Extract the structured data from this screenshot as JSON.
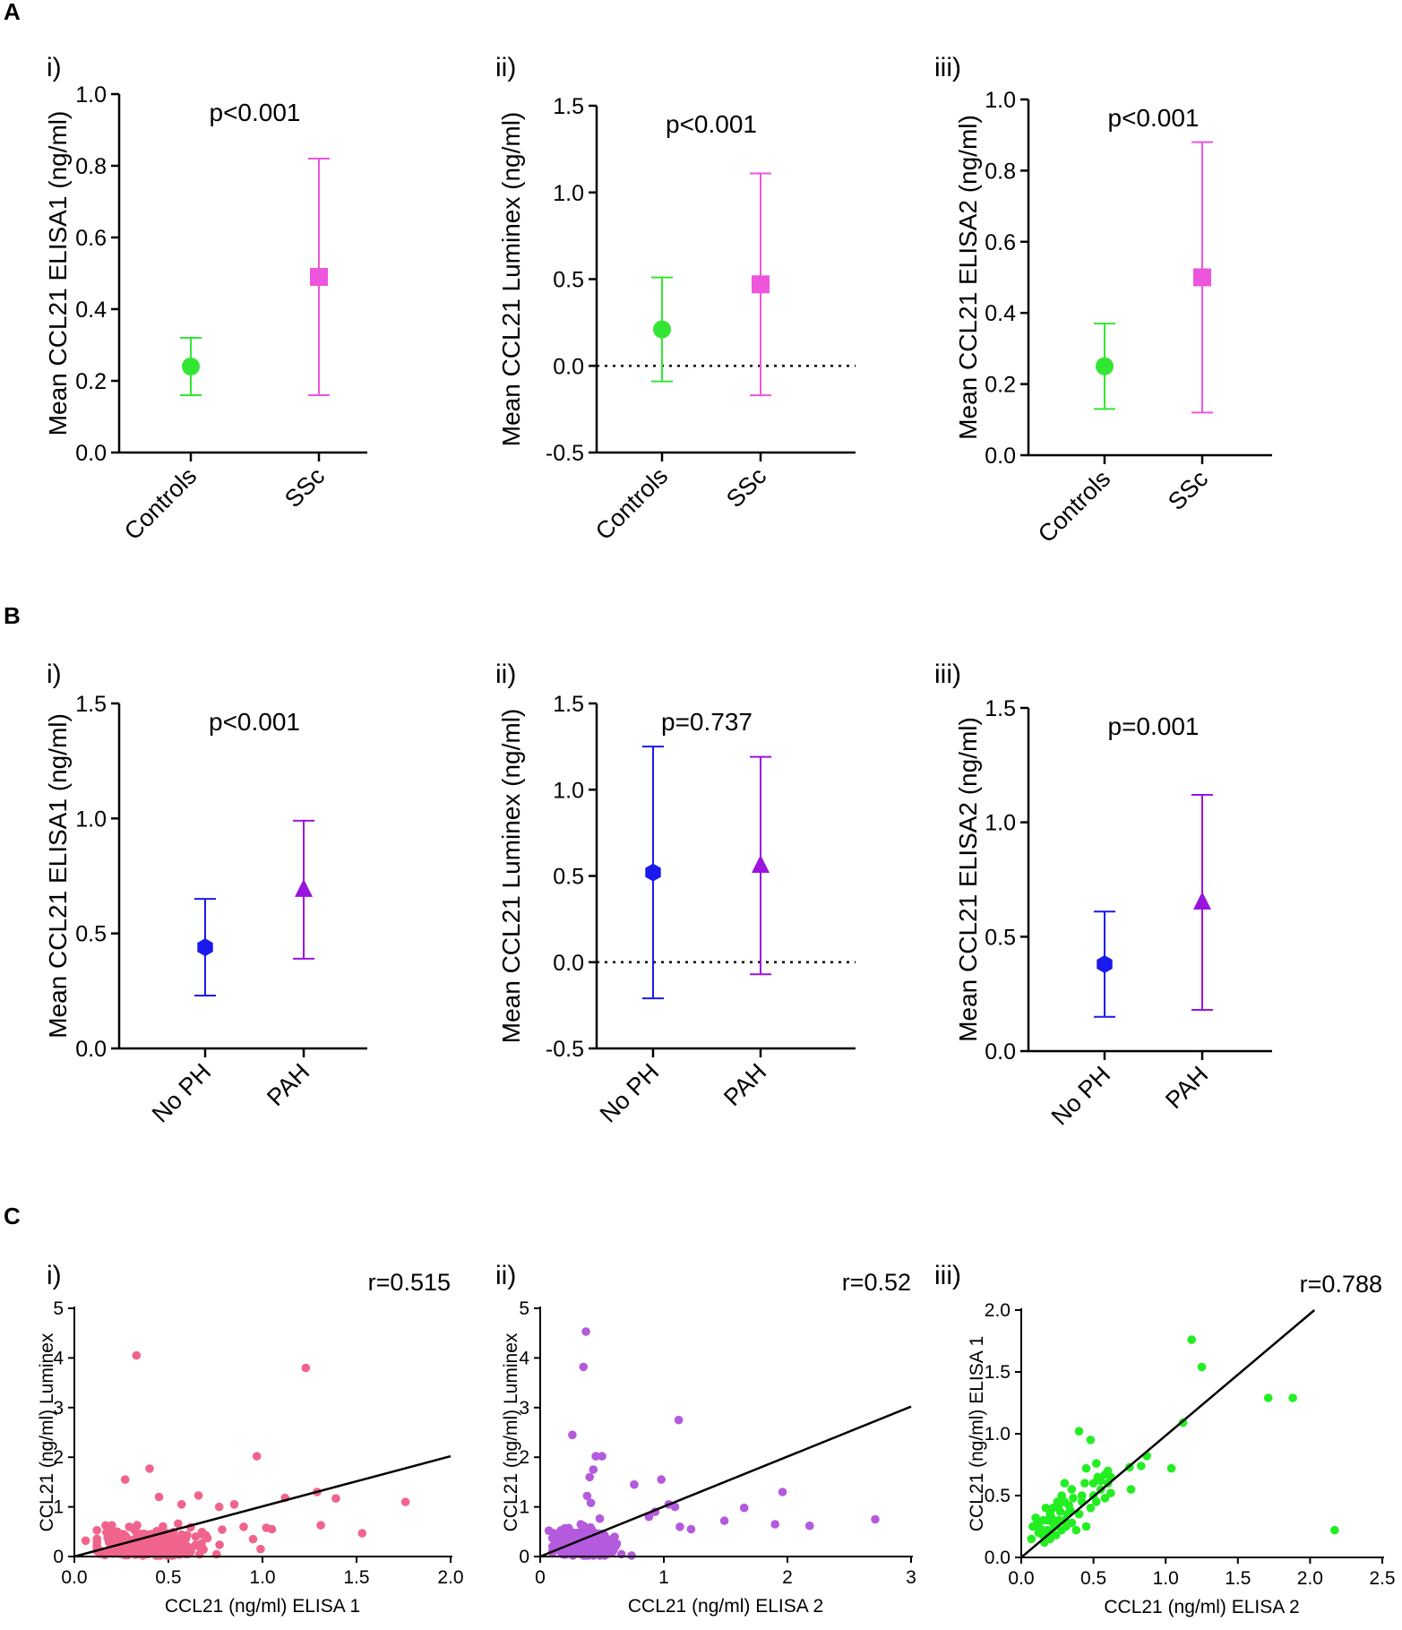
{
  "row_labels": [
    "A",
    "B",
    "C"
  ],
  "chart_data": [
    {
      "id": "A-i",
      "row": "A",
      "panel_label": "i)",
      "type": "errorbar",
      "ylabel": "Mean CCL21 ELISA1 (ng/ml)",
      "ylim": [
        0,
        1.0
      ],
      "yticks": [
        0,
        0.2,
        0.4,
        0.6,
        0.8,
        1.0
      ],
      "ytick_labels": [
        "0.0",
        "0.2",
        "0.4",
        "0.6",
        "0.8",
        "1.0"
      ],
      "zero_dotted": false,
      "p_text": "p<0.001",
      "groups": [
        {
          "label": "Controls",
          "mean": 0.24,
          "low": 0.16,
          "high": 0.32,
          "color": "#33e633",
          "marker": "circle"
        },
        {
          "label": "SSc",
          "mean": 0.49,
          "low": 0.16,
          "high": 0.82,
          "color": "#ee55dd",
          "marker": "square"
        }
      ]
    },
    {
      "id": "A-ii",
      "row": "A",
      "panel_label": "ii)",
      "type": "errorbar",
      "ylabel": "Mean CCL21 Luminex (ng/ml)",
      "ylim": [
        -0.5,
        1.5
      ],
      "yticks": [
        -0.5,
        0,
        0.5,
        1.0,
        1.5
      ],
      "ytick_labels": [
        "-0.5",
        "0.0",
        "0.5",
        "1.0",
        "1.5"
      ],
      "zero_dotted": true,
      "p_text": "p<0.001",
      "groups": [
        {
          "label": "Controls",
          "mean": 0.21,
          "low": -0.09,
          "high": 0.51,
          "color": "#33e633",
          "marker": "circle"
        },
        {
          "label": "SSc",
          "mean": 0.47,
          "low": -0.17,
          "high": 1.11,
          "color": "#ee55dd",
          "marker": "square"
        }
      ]
    },
    {
      "id": "A-iii",
      "row": "A",
      "panel_label": "iii)",
      "type": "errorbar",
      "ylabel": "Mean CCL21 ELISA2 (ng/ml)",
      "ylim": [
        0,
        1.0
      ],
      "yticks": [
        0,
        0.2,
        0.4,
        0.6,
        0.8,
        1.0
      ],
      "ytick_labels": [
        "0.0",
        "0.2",
        "0.4",
        "0.6",
        "0.8",
        "1.0"
      ],
      "zero_dotted": false,
      "p_text": "p<0.001",
      "groups": [
        {
          "label": "Controls",
          "mean": 0.25,
          "low": 0.13,
          "high": 0.37,
          "color": "#33e633",
          "marker": "circle"
        },
        {
          "label": "SSc",
          "mean": 0.5,
          "low": 0.12,
          "high": 0.88,
          "color": "#ee55dd",
          "marker": "square"
        }
      ]
    },
    {
      "id": "B-i",
      "row": "B",
      "panel_label": "i)",
      "type": "errorbar",
      "ylabel": "Mean CCL21 ELISA1 (ng/ml)",
      "ylim": [
        0,
        1.5
      ],
      "yticks": [
        0,
        0.5,
        1.0,
        1.5
      ],
      "ytick_labels": [
        "0.0",
        "0.5",
        "1.0",
        "1.5"
      ],
      "zero_dotted": false,
      "p_text": "p<0.001",
      "groups": [
        {
          "label": "No PH",
          "mean": 0.44,
          "low": 0.23,
          "high": 0.65,
          "color": "#1a1aee",
          "marker": "hexagon"
        },
        {
          "label": "PAH",
          "mean": 0.69,
          "low": 0.39,
          "high": 0.99,
          "color": "#9a14dd",
          "marker": "triangle"
        }
      ]
    },
    {
      "id": "B-ii",
      "row": "B",
      "panel_label": "ii)",
      "type": "errorbar",
      "ylabel": "Mean CCL21 Luminex (ng/ml)",
      "ylim": [
        -0.5,
        1.5
      ],
      "yticks": [
        -0.5,
        0,
        0.5,
        1.0,
        1.5
      ],
      "ytick_labels": [
        "-0.5",
        "0.0",
        "0.5",
        "1.0",
        "1.5"
      ],
      "zero_dotted": true,
      "p_text": "p=0.737",
      "groups": [
        {
          "label": "No PH",
          "mean": 0.52,
          "low": -0.21,
          "high": 1.25,
          "color": "#1a1aee",
          "marker": "hexagon"
        },
        {
          "label": "PAH",
          "mean": 0.56,
          "low": -0.07,
          "high": 1.19,
          "color": "#9a14dd",
          "marker": "triangle"
        }
      ]
    },
    {
      "id": "B-iii",
      "row": "B",
      "panel_label": "iii)",
      "type": "errorbar",
      "ylabel": "Mean CCL21 ELISA2 (ng/ml)",
      "ylim": [
        0,
        1.5
      ],
      "yticks": [
        0,
        0.5,
        1.0,
        1.5
      ],
      "ytick_labels": [
        "0.0",
        "0.5",
        "1.0",
        "1.5"
      ],
      "zero_dotted": false,
      "p_text": "p=0.001",
      "groups": [
        {
          "label": "No PH",
          "mean": 0.38,
          "low": 0.15,
          "high": 0.61,
          "color": "#1a1aee",
          "marker": "hexagon"
        },
        {
          "label": "PAH",
          "mean": 0.65,
          "low": 0.18,
          "high": 1.12,
          "color": "#9a14dd",
          "marker": "triangle"
        }
      ]
    },
    {
      "id": "C-i",
      "row": "C",
      "panel_label": "i)",
      "type": "scatter",
      "xlabel": "CCL21 (ng/ml) ELISA 1",
      "ylabel": "CCL21 (ng/ml) Luminex",
      "xlim": [
        0,
        2.0
      ],
      "ylim": [
        0,
        5
      ],
      "xticks": [
        0,
        0.5,
        1.0,
        1.5,
        2.0
      ],
      "xtick_labels": [
        "0.0",
        "0.5",
        "1.0",
        "1.5",
        "2.0"
      ],
      "yticks": [
        0,
        1,
        2,
        3,
        4,
        5
      ],
      "ytick_labels": [
        "0",
        "1",
        "2",
        "3",
        "4",
        "5"
      ],
      "r_text": "r=0.515",
      "color": "#f0648c",
      "fit": {
        "x0": 0,
        "y0": 0,
        "x1": 2.0,
        "y1": 2.02
      },
      "outliers": [
        [
          0.33,
          4.05
        ],
        [
          1.23,
          3.8
        ],
        [
          0.97,
          2.02
        ],
        [
          0.4,
          1.77
        ],
        [
          0.27,
          1.55
        ],
        [
          1.12,
          1.18
        ],
        [
          1.29,
          1.3
        ],
        [
          1.39,
          1.17
        ],
        [
          1.76,
          1.1
        ],
        [
          0.45,
          1.2
        ],
        [
          0.66,
          1.23
        ],
        [
          0.85,
          1.05
        ],
        [
          0.57,
          1.05
        ],
        [
          0.77,
          1.0
        ],
        [
          1.31,
          0.63
        ],
        [
          1.53,
          0.47
        ],
        [
          1.05,
          0.55
        ],
        [
          0.9,
          0.6
        ],
        [
          0.99,
          0.15
        ],
        [
          0.06,
          0.32
        ],
        [
          0.95,
          0.35
        ],
        [
          1.02,
          0.58
        ]
      ],
      "cluster": {
        "n": 220,
        "x_mean": 0.38,
        "x_sd": 0.14,
        "y_mean": 0.22,
        "y_sd": 0.18,
        "x_min": 0.12,
        "x_max": 0.95,
        "seed": 11
      }
    },
    {
      "id": "C-ii",
      "row": "C",
      "panel_label": "ii)",
      "type": "scatter",
      "xlabel": "CCL21 (ng/ml) ELISA 2",
      "ylabel": "CCL21 (ng/ml) Luminex",
      "xlim": [
        0,
        3
      ],
      "ylim": [
        0,
        5
      ],
      "xticks": [
        0,
        1,
        2,
        3
      ],
      "xtick_labels": [
        "0",
        "1",
        "2",
        "3"
      ],
      "yticks": [
        0,
        1,
        2,
        3,
        4,
        5
      ],
      "ytick_labels": [
        "0",
        "1",
        "2",
        "3",
        "4",
        "5"
      ],
      "r_text": "r=0.52",
      "color": "#b45adc",
      "fit": {
        "x0": 0,
        "y0": 0,
        "x1": 3,
        "y1": 3.02
      },
      "outliers": [
        [
          0.37,
          4.53
        ],
        [
          0.35,
          3.82
        ],
        [
          0.26,
          2.45
        ],
        [
          1.12,
          2.75
        ],
        [
          0.45,
          2.02
        ],
        [
          0.5,
          2.02
        ],
        [
          0.43,
          1.75
        ],
        [
          0.4,
          1.6
        ],
        [
          0.98,
          1.55
        ],
        [
          0.76,
          1.45
        ],
        [
          0.38,
          1.22
        ],
        [
          0.41,
          1.08
        ],
        [
          1.04,
          1.05
        ],
        [
          1.09,
          1.0
        ],
        [
          1.65,
          0.98
        ],
        [
          1.96,
          1.3
        ],
        [
          2.71,
          0.75
        ],
        [
          2.18,
          0.62
        ],
        [
          1.49,
          0.72
        ],
        [
          1.9,
          0.65
        ],
        [
          0.07,
          0.52
        ],
        [
          1.13,
          0.6
        ],
        [
          0.88,
          0.8
        ],
        [
          1.22,
          0.55
        ],
        [
          0.93,
          0.9
        ]
      ],
      "cluster": {
        "n": 260,
        "x_mean": 0.33,
        "x_sd": 0.12,
        "y_mean": 0.24,
        "y_sd": 0.16,
        "x_min": 0.1,
        "x_max": 0.75,
        "seed": 23
      }
    },
    {
      "id": "C-iii",
      "row": "C",
      "panel_label": "iii)",
      "type": "scatter",
      "xlabel": "CCL21 (ng/ml) ELISA 2",
      "ylabel": "CCL21 (ng/ml) ELISA 1",
      "xlim": [
        0,
        2.5
      ],
      "ylim": [
        0,
        2.0
      ],
      "xticks": [
        0,
        0.5,
        1.0,
        1.5,
        2.0,
        2.5
      ],
      "xtick_labels": [
        "0.0",
        "0.5",
        "1.0",
        "1.5",
        "2.0",
        "2.5"
      ],
      "yticks": [
        0,
        0.5,
        1.0,
        1.5,
        2.0
      ],
      "ytick_labels": [
        "0.0",
        "0.5",
        "1.0",
        "1.5",
        "2.0"
      ],
      "r_text": "r=0.788",
      "color": "#22ee22",
      "fit": {
        "x0": 0,
        "y0": 0,
        "x1": 2.03,
        "y1": 2.0
      },
      "points": [
        [
          1.18,
          1.76
        ],
        [
          1.25,
          1.54
        ],
        [
          1.12,
          1.09
        ],
        [
          0.4,
          1.02
        ],
        [
          0.48,
          0.95
        ],
        [
          1.71,
          1.29
        ],
        [
          1.88,
          1.29
        ],
        [
          2.17,
          0.22
        ],
        [
          1.04,
          0.72
        ],
        [
          0.83,
          0.74
        ],
        [
          0.87,
          0.82
        ],
        [
          0.75,
          0.73
        ],
        [
          0.76,
          0.55
        ],
        [
          0.52,
          0.76
        ],
        [
          0.58,
          0.67
        ],
        [
          0.6,
          0.6
        ],
        [
          0.55,
          0.55
        ],
        [
          0.62,
          0.52
        ],
        [
          0.45,
          0.72
        ],
        [
          0.5,
          0.5
        ],
        [
          0.52,
          0.45
        ],
        [
          0.42,
          0.45
        ],
        [
          0.3,
          0.6
        ],
        [
          0.35,
          0.55
        ],
        [
          0.28,
          0.5
        ],
        [
          0.4,
          0.35
        ],
        [
          0.45,
          0.25
        ],
        [
          0.38,
          0.22
        ],
        [
          0.33,
          0.42
        ],
        [
          0.25,
          0.45
        ],
        [
          0.22,
          0.4
        ],
        [
          0.2,
          0.35
        ],
        [
          0.18,
          0.3
        ],
        [
          0.15,
          0.3
        ],
        [
          0.1,
          0.32
        ],
        [
          0.12,
          0.25
        ],
        [
          0.18,
          0.22
        ],
        [
          0.22,
          0.28
        ],
        [
          0.26,
          0.3
        ],
        [
          0.3,
          0.3
        ],
        [
          0.28,
          0.22
        ],
        [
          0.24,
          0.18
        ],
        [
          0.2,
          0.15
        ],
        [
          0.15,
          0.18
        ],
        [
          0.12,
          0.2
        ],
        [
          0.07,
          0.15
        ],
        [
          0.08,
          0.25
        ],
        [
          0.32,
          0.35
        ],
        [
          0.35,
          0.28
        ],
        [
          0.42,
          0.5
        ],
        [
          0.48,
          0.4
        ],
        [
          0.55,
          0.62
        ],
        [
          0.6,
          0.7
        ],
        [
          0.58,
          0.48
        ],
        [
          0.5,
          0.6
        ],
        [
          0.36,
          0.48
        ],
        [
          0.27,
          0.37
        ],
        [
          0.23,
          0.25
        ],
        [
          0.17,
          0.4
        ],
        [
          0.14,
          0.22
        ],
        [
          0.11,
          0.28
        ],
        [
          0.19,
          0.2
        ],
        [
          0.21,
          0.32
        ],
        [
          0.31,
          0.25
        ],
        [
          0.26,
          0.42
        ],
        [
          0.3,
          0.45
        ],
        [
          0.44,
          0.6
        ],
        [
          0.53,
          0.65
        ],
        [
          0.62,
          0.65
        ],
        [
          0.16,
          0.12
        ],
        [
          0.34,
          0.38
        ]
      ]
    }
  ]
}
